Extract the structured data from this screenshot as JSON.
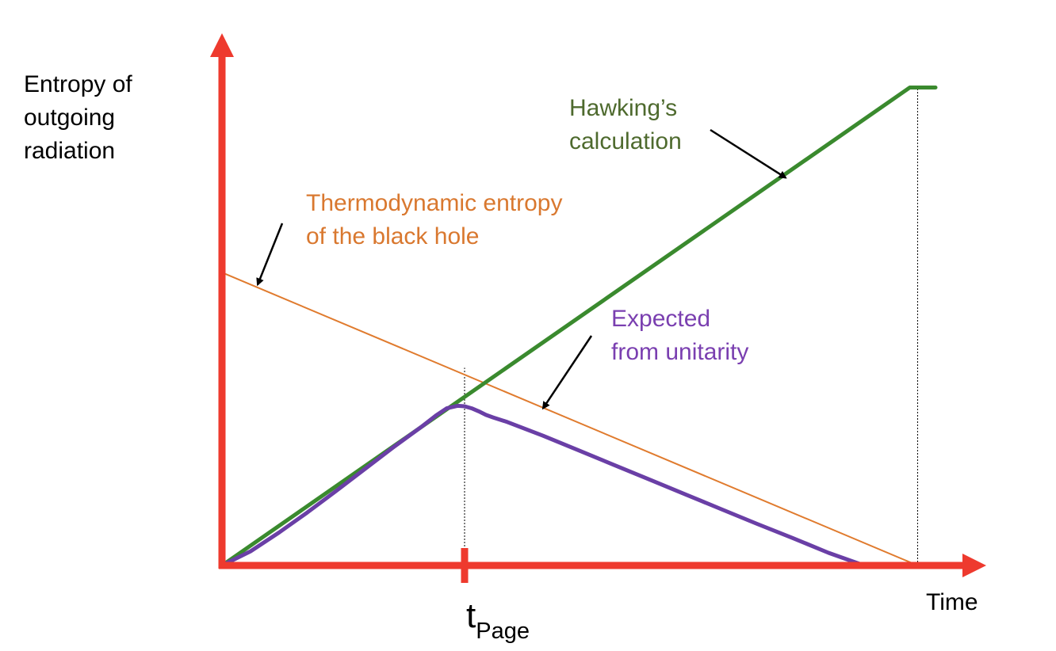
{
  "chart_data": {
    "type": "line",
    "ylabel": "Entropy of\noutgoing\nradiation",
    "xlabel": "Time",
    "xtick_label": "t",
    "xtick_label_subscript": "Page",
    "xlim": [
      0,
      1
    ],
    "ylim": [
      0,
      1
    ],
    "grid": false,
    "series": [
      {
        "name": "Hawking's calculation",
        "label_text": "Hawking’s\ncalculation",
        "color": "#3a8a2e",
        "label_color": "#4e6a2e",
        "x": [
          0.0,
          0.964,
          1.0
        ],
        "y": [
          0.0,
          0.943,
          0.943
        ]
      },
      {
        "name": "Thermodynamic entropy of the black hole",
        "label_text": "Thermodynamic entropy\nof the black hole",
        "color": "#e07b2e",
        "label_color": "#d9782f",
        "x": [
          0.0,
          0.975
        ],
        "y": [
          0.578,
          0.0
        ]
      },
      {
        "name": "Expected from unitarity",
        "label_text": "Expected\nfrom unitarity",
        "color": "#6a3fa6",
        "label_color": "#7a3fb0",
        "x": [
          0.0,
          0.04,
          0.08,
          0.12,
          0.16,
          0.2,
          0.24,
          0.28,
          0.3,
          0.315,
          0.33,
          0.34,
          0.35,
          0.36,
          0.37,
          0.38,
          0.4,
          0.45,
          0.5,
          0.55,
          0.6,
          0.65,
          0.7,
          0.75,
          0.8,
          0.85,
          0.9,
          0.95,
          0.975
        ],
        "y": [
          0.0,
          0.028,
          0.065,
          0.105,
          0.147,
          0.19,
          0.233,
          0.274,
          0.296,
          0.31,
          0.315,
          0.314,
          0.31,
          0.304,
          0.297,
          0.292,
          0.283,
          0.256,
          0.227,
          0.198,
          0.169,
          0.14,
          0.111,
          0.082,
          0.054,
          0.025,
          0.0,
          0.0,
          0.0
        ]
      }
    ],
    "vlines_x": [
      0.34,
      0.975
    ],
    "page_time_x": 0.34,
    "annotations": [
      {
        "target": "Hawking's calculation",
        "points_to_x": 0.79,
        "points_to_y": 0.765
      },
      {
        "target": "Thermodynamic entropy of the black hole",
        "points_to_x": 0.05,
        "points_to_y": 0.554
      },
      {
        "target": "Expected from unitarity",
        "points_to_x": 0.45,
        "points_to_y": 0.31
      }
    ],
    "axis_color": "#ee3a2e"
  }
}
